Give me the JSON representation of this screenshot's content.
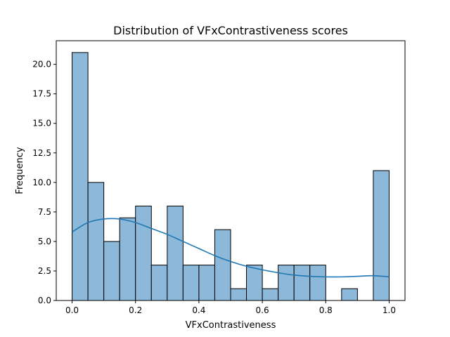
{
  "chart_data": {
    "type": "bar",
    "title": "Distribution of VFxContrastiveness scores",
    "xlabel": "VFxContrastiveness",
    "ylabel": "Frequency",
    "xlim": [
      -0.05,
      1.05
    ],
    "ylim": [
      0,
      22
    ],
    "grid": false,
    "x_ticks": [
      0.0,
      0.2,
      0.4,
      0.6,
      0.8,
      1.0
    ],
    "x_tick_labels": [
      "0.0",
      "0.2",
      "0.4",
      "0.6",
      "0.8",
      "1.0"
    ],
    "y_ticks": [
      0.0,
      2.5,
      5.0,
      7.5,
      10.0,
      12.5,
      15.0,
      17.5,
      20.0
    ],
    "y_tick_labels": [
      "0.0",
      "2.5",
      "5.0",
      "7.5",
      "10.0",
      "12.5",
      "15.0",
      "17.5",
      "20.0"
    ],
    "bin_edges": [
      0.0,
      0.05,
      0.1,
      0.15,
      0.2,
      0.25,
      0.3,
      0.35,
      0.4,
      0.45,
      0.5,
      0.55,
      0.6,
      0.65,
      0.7,
      0.75,
      0.8,
      0.85,
      0.9,
      0.95,
      1.0
    ],
    "counts": [
      21,
      10,
      5,
      7,
      8,
      3,
      8,
      3,
      3,
      6,
      1,
      3,
      1,
      3,
      3,
      3,
      0,
      1,
      0,
      11
    ],
    "kde": {
      "x": [
        0.0,
        0.05,
        0.1,
        0.15,
        0.2,
        0.25,
        0.3,
        0.35,
        0.4,
        0.45,
        0.5,
        0.55,
        0.6,
        0.65,
        0.7,
        0.75,
        0.8,
        0.85,
        0.9,
        0.95,
        1.0
      ],
      "y": [
        5.8,
        6.6,
        6.9,
        6.9,
        6.6,
        6.1,
        5.6,
        5.0,
        4.4,
        3.8,
        3.3,
        2.9,
        2.6,
        2.35,
        2.15,
        2.05,
        2.0,
        2.0,
        2.05,
        2.1,
        2.0
      ]
    },
    "colors": {
      "bar_fill": "#8cb8d9",
      "bar_edge": "#000000",
      "kde_line": "#1f77b4"
    }
  }
}
